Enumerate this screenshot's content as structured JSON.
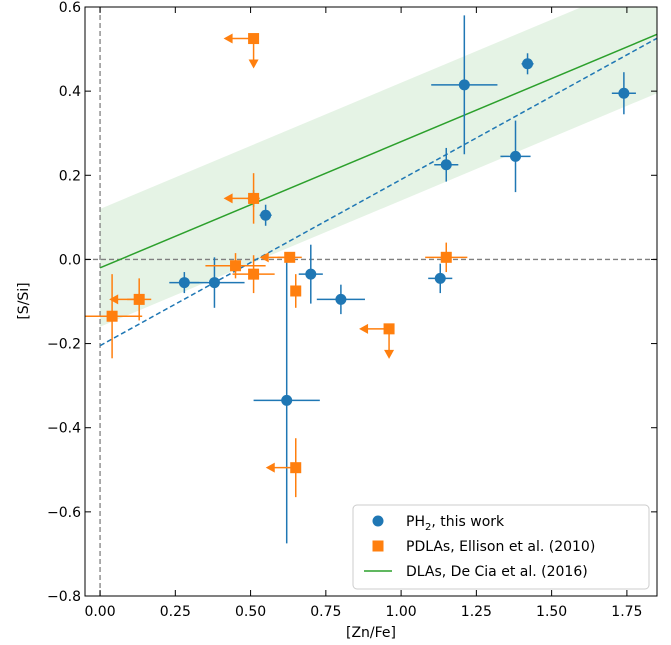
{
  "chart_data": {
    "type": "scatter",
    "xlabel": "[Zn/Fe]",
    "ylabel": "[S/Si]",
    "xlim": [
      -0.05,
      1.85
    ],
    "ylim": [
      -0.8,
      0.6
    ],
    "xticks": [
      0.0,
      0.25,
      0.5,
      0.75,
      1.0,
      1.25,
      1.5,
      1.75
    ],
    "xtick_labels": [
      "0.00",
      "0.25",
      "0.50",
      "0.75",
      "1.00",
      "1.25",
      "1.50",
      "1.75"
    ],
    "yticks": [
      -0.8,
      -0.6,
      -0.4,
      -0.2,
      0.0,
      0.2,
      0.4,
      0.6
    ],
    "ytick_labels": [
      "−0.8",
      "−0.6",
      "−0.4",
      "−0.2",
      "0.0",
      "0.2",
      "0.4",
      "0.6"
    ],
    "grid": false,
    "legend_position": "lower-right",
    "colors": {
      "ph2": "#1f77b4",
      "pdla": "#ff7f0e",
      "dla": "#2ca02c",
      "band": "#2ca02c",
      "ref": "#808080"
    },
    "reference_lines": {
      "x": 0.0,
      "y": 0.0
    },
    "fit_line": {
      "name": "DLAs, De Cia et al. (2016)",
      "slope": 0.3,
      "intercept": -0.02,
      "band_halfwidth": 0.14
    },
    "dashed_fit": {
      "slope": 0.395,
      "intercept": -0.205
    },
    "series": [
      {
        "name": "PH$_2$, this work",
        "legend_label": "PH",
        "legend_sub": "2",
        "legend_suffix": ", this work",
        "marker": "circle",
        "points": [
          {
            "x": 0.28,
            "y": -0.055,
            "xerr": 0.05,
            "yerr": 0.025
          },
          {
            "x": 0.38,
            "y": -0.055,
            "xerr": 0.1,
            "yerr": 0.06
          },
          {
            "x": 0.51,
            "y": 0.145,
            "xerr": 0.02,
            "yerr": 0.02
          },
          {
            "x": 0.55,
            "y": 0.105,
            "xerr": 0.02,
            "yerr": 0.025
          },
          {
            "x": 0.62,
            "y": -0.335,
            "xerr": 0.11,
            "yerr": 0.34
          },
          {
            "x": 0.7,
            "y": -0.035,
            "xerr": 0.04,
            "yerr": 0.07
          },
          {
            "x": 0.8,
            "y": -0.095,
            "xerr": 0.08,
            "yerr": 0.035
          },
          {
            "x": 1.13,
            "y": -0.045,
            "xerr": 0.04,
            "yerr": 0.035
          },
          {
            "x": 1.15,
            "y": 0.225,
            "xerr": 0.04,
            "yerr": 0.04
          },
          {
            "x": 1.21,
            "y": 0.415,
            "xerr": 0.11,
            "yerr": 0.165
          },
          {
            "x": 1.38,
            "y": 0.245,
            "xerr": 0.05,
            "yerr": 0.085
          },
          {
            "x": 1.42,
            "y": 0.465,
            "xerr": 0.02,
            "yerr": 0.025
          },
          {
            "x": 1.74,
            "y": 0.395,
            "xerr": 0.04,
            "yerr": 0.05
          }
        ]
      },
      {
        "name": "PDLAs, Ellison et al. (2010)",
        "marker": "square",
        "points": [
          {
            "x": 0.04,
            "y": -0.135,
            "xerr": 0.1,
            "yerr": 0.1
          },
          {
            "x": 0.13,
            "y": -0.095,
            "xerr": 0.04,
            "yerr": 0.05,
            "upper_x": true
          },
          {
            "x": 0.45,
            "y": -0.015,
            "xerr": 0.1,
            "yerr": 0.03
          },
          {
            "x": 0.51,
            "y": -0.035,
            "xerr": 0.07,
            "yerr": 0.045
          },
          {
            "x": 0.51,
            "y": 0.145,
            "xerr": 0.02,
            "yerr": 0.06,
            "upper_x": true
          },
          {
            "x": 0.51,
            "y": 0.525,
            "upper_x": true,
            "upper_y": true
          },
          {
            "x": 0.63,
            "y": 0.005,
            "xerr": 0.04,
            "yerr": 0.01,
            "upper_x": true
          },
          {
            "x": 0.65,
            "y": -0.075,
            "yerr": 0.04
          },
          {
            "x": 0.65,
            "y": -0.495,
            "yerr": 0.07,
            "upper_x": true
          },
          {
            "x": 0.96,
            "y": -0.165,
            "upper_x": true,
            "upper_y": true
          },
          {
            "x": 1.15,
            "y": 0.005,
            "xerr": 0.07,
            "yerr": 0.035
          }
        ]
      }
    ]
  }
}
